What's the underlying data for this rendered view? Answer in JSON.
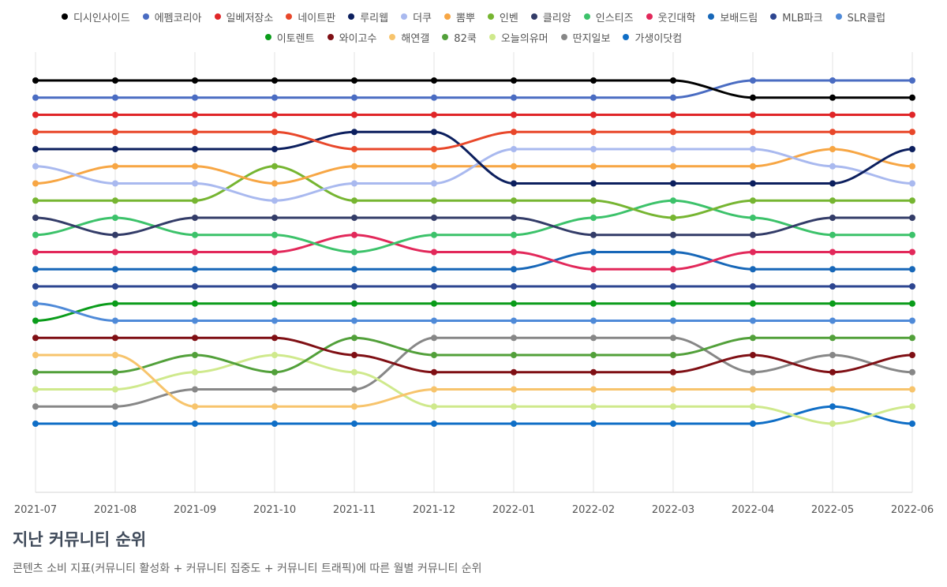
{
  "footer": {
    "title": "지난 커뮤니티 순위",
    "subtitle": "콘텐츠 소비 지표(커뮤니티 활성화 + 커뮤니티 집중도 + 커뮤니티 트래픽)에 따른 월별 커뮤니티 순위"
  },
  "chart_data": {
    "type": "line",
    "title": "",
    "xlabel": "",
    "ylabel": "",
    "y_inverted": true,
    "ylim": [
      1,
      23
    ],
    "grid": "vertical",
    "legend_position": "top",
    "x": [
      "2021-07",
      "2021-08",
      "2021-09",
      "2021-10",
      "2021-11",
      "2021-12",
      "2022-01",
      "2022-02",
      "2022-03",
      "2022-04",
      "2022-05",
      "2022-06"
    ],
    "series": [
      {
        "name": "디시인사이드",
        "color": "#000000",
        "values": [
          1,
          1,
          1,
          1,
          1,
          1,
          1,
          1,
          1,
          2,
          2,
          2
        ]
      },
      {
        "name": "에펨코리아",
        "color": "#4a6cc2",
        "values": [
          2,
          2,
          2,
          2,
          2,
          2,
          2,
          2,
          2,
          1,
          1,
          1
        ]
      },
      {
        "name": "일베저장소",
        "color": "#e02628",
        "values": [
          3,
          3,
          3,
          3,
          3,
          3,
          3,
          3,
          3,
          3,
          3,
          3
        ]
      },
      {
        "name": "네이트판",
        "color": "#e8472a",
        "values": [
          4,
          4,
          4,
          4,
          5,
          5,
          4,
          4,
          4,
          4,
          4,
          4
        ]
      },
      {
        "name": "루리웹",
        "color": "#0c1f5e",
        "values": [
          5,
          5,
          5,
          5,
          4,
          4,
          7,
          7,
          7,
          7,
          7,
          5
        ]
      },
      {
        "name": "더쿠",
        "color": "#a9b9ef",
        "values": [
          6,
          7,
          7,
          8,
          7,
          7,
          5,
          5,
          5,
          5,
          6,
          7
        ]
      },
      {
        "name": "뽐뿌",
        "color": "#f7a644",
        "values": [
          7,
          6,
          6,
          7,
          6,
          6,
          6,
          6,
          6,
          6,
          5,
          6
        ]
      },
      {
        "name": "인벤",
        "color": "#76b531",
        "values": [
          8,
          8,
          8,
          6,
          8,
          8,
          8,
          8,
          9,
          8,
          8,
          8
        ]
      },
      {
        "name": "클리앙",
        "color": "#333c68",
        "values": [
          9,
          10,
          9,
          9,
          9,
          9,
          9,
          10,
          10,
          10,
          9,
          9
        ]
      },
      {
        "name": "인스티즈",
        "color": "#3cc26a",
        "values": [
          10,
          9,
          10,
          10,
          11,
          10,
          10,
          9,
          8,
          9,
          10,
          10
        ]
      },
      {
        "name": "웃긴대학",
        "color": "#e2285a",
        "values": [
          11,
          11,
          11,
          11,
          10,
          11,
          11,
          12,
          12,
          11,
          11,
          11
        ]
      },
      {
        "name": "보배드림",
        "color": "#1767b8",
        "values": [
          12,
          12,
          12,
          12,
          12,
          12,
          12,
          11,
          11,
          12,
          12,
          12
        ]
      },
      {
        "name": "MLB파크",
        "color": "#2c4590",
        "values": [
          13,
          13,
          13,
          13,
          13,
          13,
          13,
          13,
          13,
          13,
          13,
          13
        ]
      },
      {
        "name": "SLR클럽",
        "color": "#4f8ad8",
        "values": [
          14,
          15,
          15,
          15,
          15,
          15,
          15,
          15,
          15,
          15,
          15,
          15
        ]
      },
      {
        "name": "이토렌트",
        "color": "#0a9c1a",
        "values": [
          15,
          14,
          14,
          14,
          14,
          14,
          14,
          14,
          14,
          14,
          14,
          14
        ]
      },
      {
        "name": "와이고수",
        "color": "#7f0f14",
        "values": [
          16,
          16,
          16,
          16,
          17,
          18,
          18,
          18,
          18,
          17,
          18,
          17
        ]
      },
      {
        "name": "해연갤",
        "color": "#f7c46c",
        "values": [
          17,
          17,
          20,
          20,
          20,
          19,
          19,
          19,
          19,
          19,
          19,
          19
        ]
      },
      {
        "name": "82쿡",
        "color": "#52a03a",
        "values": [
          18,
          18,
          17,
          18,
          16,
          17,
          17,
          17,
          17,
          16,
          16,
          16
        ]
      },
      {
        "name": "오늘의유머",
        "color": "#cfe98c",
        "values": [
          19,
          19,
          18,
          17,
          18,
          20,
          20,
          20,
          20,
          20,
          21,
          20
        ]
      },
      {
        "name": "딴지일보",
        "color": "#878787",
        "values": [
          20,
          20,
          19,
          19,
          19,
          16,
          16,
          16,
          16,
          18,
          17,
          18
        ]
      },
      {
        "name": "가생이닷컴",
        "color": "#0f6ec6",
        "values": [
          21,
          21,
          21,
          21,
          21,
          21,
          21,
          21,
          21,
          21,
          20,
          21
        ]
      }
    ]
  }
}
